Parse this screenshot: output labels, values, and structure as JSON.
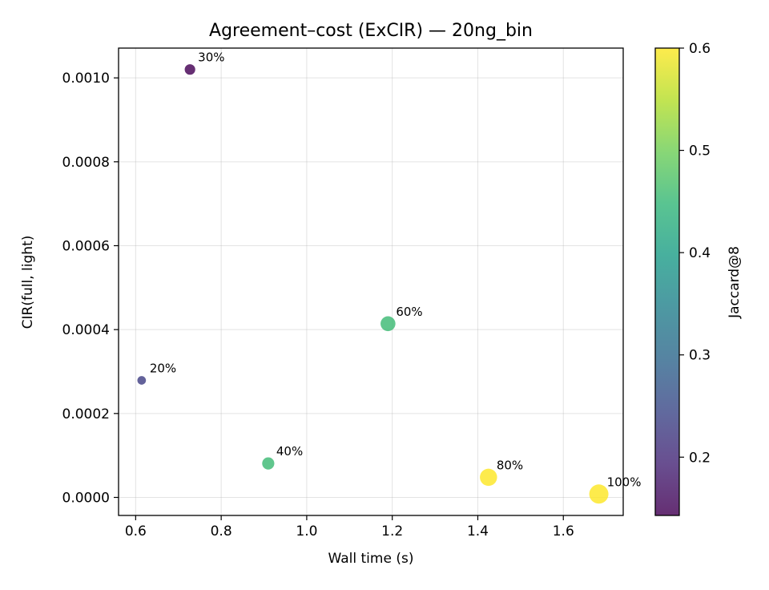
{
  "chart_data": {
    "type": "scatter",
    "title": "Agreement–cost (ExCIR) — 20ng_bin",
    "xlabel": "Wall time (s)",
    "ylabel": "CIR(full, light)",
    "xlim": [
      0.56,
      1.74
    ],
    "ylim": [
      -4.3e-05,
      0.001071
    ],
    "x_ticks": [
      0.6,
      0.8,
      1.0,
      1.2,
      1.4,
      1.6
    ],
    "x_tick_labels": [
      "0.6",
      "0.8",
      "1.0",
      "1.2",
      "1.4",
      "1.6"
    ],
    "y_ticks": [
      0.0,
      0.0002,
      0.0004,
      0.0006,
      0.0008,
      0.001
    ],
    "y_tick_labels": [
      "0.0000",
      "0.0002",
      "0.0004",
      "0.0006",
      "0.0008",
      "0.0010"
    ],
    "grid": true,
    "colorbar": {
      "label": "Jaccard@8",
      "range": [
        0.143,
        0.6
      ],
      "ticks": [
        0.2,
        0.3,
        0.4,
        0.5,
        0.6
      ],
      "tick_labels": [
        "0.2",
        "0.3",
        "0.4",
        "0.5",
        "0.6"
      ],
      "colormap": "viridis"
    },
    "points": [
      {
        "label": "20%",
        "x": 0.614,
        "y": 0.000279,
        "jaccard": 0.23,
        "size": 20
      },
      {
        "label": "30%",
        "x": 0.727,
        "y": 0.00102,
        "jaccard": 0.143,
        "size": 30
      },
      {
        "label": "40%",
        "x": 0.91,
        "y": 8.1e-05,
        "jaccard": 0.455,
        "size": 40
      },
      {
        "label": "60%",
        "x": 1.19,
        "y": 0.000414,
        "jaccard": 0.455,
        "size": 60
      },
      {
        "label": "80%",
        "x": 1.425,
        "y": 4.8e-05,
        "jaccard": 0.6,
        "size": 80
      },
      {
        "label": "100%",
        "x": 1.683,
        "y": 8e-06,
        "jaccard": 0.6,
        "size": 100
      }
    ]
  }
}
